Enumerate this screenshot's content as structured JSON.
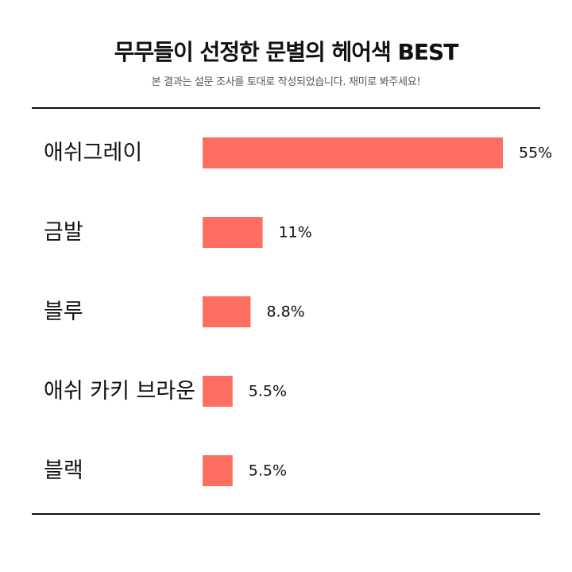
{
  "title": "무무들이 선정한 문별의 헤어색 BEST",
  "subtitle": "본 결과는 설문 조사를 토대로 작성되었습니다. 재미로 봐주세요!",
  "colors": {
    "bar": "#FF6F61",
    "text": "#111111",
    "rule": "#111111"
  },
  "chart_data": {
    "type": "bar",
    "orientation": "horizontal",
    "categories": [
      "애쉬그레이",
      "금발",
      "블루",
      "애쉬 카키 브라운",
      "블랙"
    ],
    "values": [
      55,
      11,
      8.8,
      5.5,
      5.5
    ],
    "value_labels": [
      "55%",
      "11%",
      "8.8%",
      "5.5%",
      "5.5%"
    ],
    "unit": "%",
    "xlim": [
      0,
      55
    ],
    "grid": false,
    "legend": "none"
  }
}
